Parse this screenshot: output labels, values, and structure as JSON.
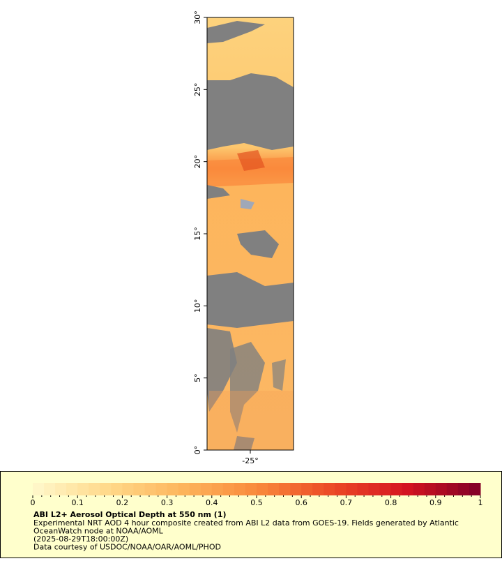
{
  "map": {
    "xlim": [
      -28,
      -22
    ],
    "ylim": [
      0,
      30
    ],
    "xticks": [
      {
        "value": -25,
        "label": "-25°"
      }
    ],
    "yticks": [
      {
        "value": 0,
        "label": "0°"
      },
      {
        "value": 5,
        "label": "5°"
      },
      {
        "value": 10,
        "label": "10°"
      },
      {
        "value": 15,
        "label": "15°"
      },
      {
        "value": 20,
        "label": "20°"
      },
      {
        "value": 25,
        "label": "25°"
      },
      {
        "value": 30,
        "label": "30°"
      }
    ],
    "colorbar": {
      "lim": [
        0,
        1
      ],
      "ticks": [
        0,
        0.1,
        0.2,
        0.3,
        0.4,
        0.5,
        0.6,
        0.7,
        0.8,
        0.9,
        1
      ],
      "colors": [
        "#fff8cc",
        "#ffd98a",
        "#fdb55c",
        "#f98a3c",
        "#ec4a26",
        "#d51420",
        "#800026"
      ]
    },
    "legend": {
      "title": "ABI L2+ Aerosol Optical Depth at 550 nm (1)",
      "lines": [
        "Experimental NRT AOD 4 hour composite created from ABI L2 data from GOES-19. Fields generated by Atlantic",
        "OceanWatch node at NOAA/AOML",
        "(2025-08-29T18:00:00Z)",
        "Data courtesy of USDOC/NOAA/OAR/AOML/PHOD"
      ]
    }
  }
}
